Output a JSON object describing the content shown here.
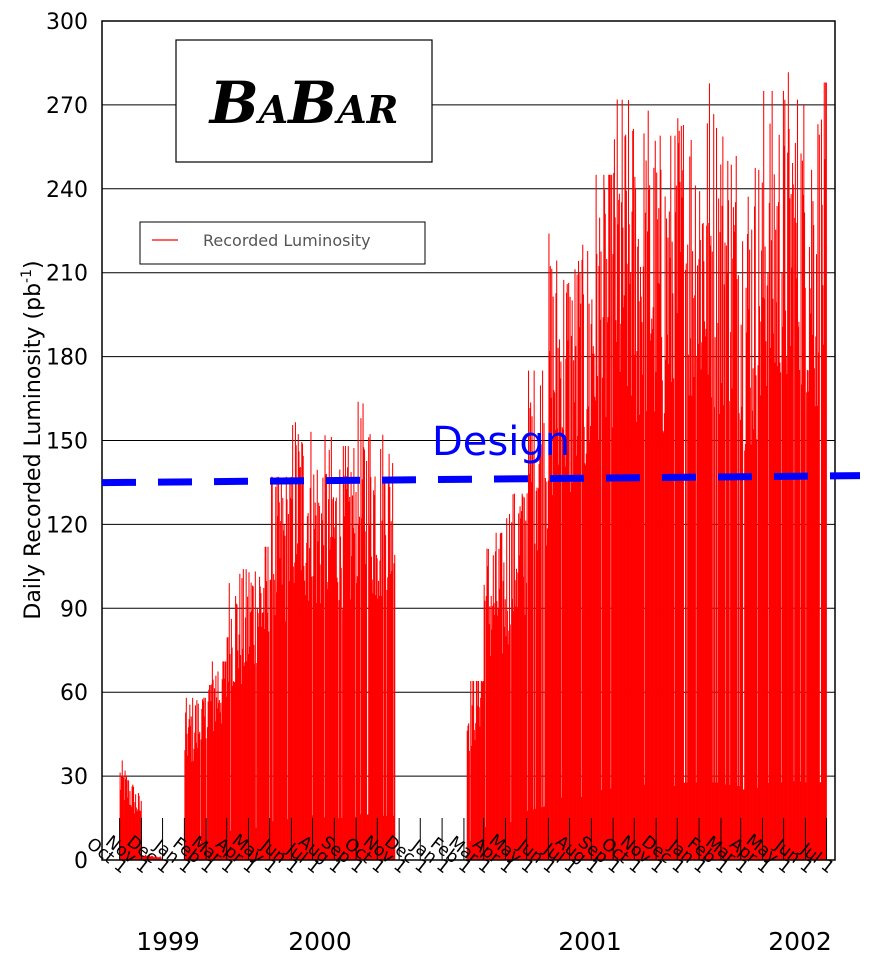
{
  "chart_data": {
    "type": "bar",
    "ylabel": "Daily Recorded Luminosity (pb",
    "ylabel_sup": "-1",
    "ylabel_end": ")",
    "ylim": [
      0,
      300
    ],
    "y_ticks": [
      0,
      30,
      60,
      90,
      120,
      150,
      180,
      210,
      240,
      270,
      300
    ],
    "grid": true,
    "x_tick_labels": [
      "Oct 1",
      "Nov 1",
      "Dec 1",
      "Jan 1",
      "Feb 1",
      "Mar 1",
      "Apr 1",
      "May 1",
      "Jun 1",
      "Jul 1",
      "Aug 1",
      "Sep 1",
      "Oct 1",
      "Nov 1",
      "Dec 1",
      "Jan 1",
      "Feb 1",
      "Mar 1",
      "Apr 1",
      "May 1",
      "Jun 1",
      "Jul 1",
      "Aug 1",
      "Sep 1",
      "Oct 1",
      "Nov 1",
      "Dec 1",
      "Jan 1",
      "Feb 1",
      "Mar 1",
      "Apr 1",
      "May 1",
      "Jun 1",
      "Jul 1"
    ],
    "years": [
      "1999",
      "2000",
      "2001",
      "2002"
    ],
    "legend": {
      "position": "top-left",
      "entry": "Recorded Luminosity",
      "color": "#ff0000"
    },
    "logo_letters": [
      "B",
      "A",
      "B",
      "A",
      "R"
    ],
    "design": {
      "label": "Design",
      "value": 136,
      "color": "#0000ff"
    },
    "series": [
      {
        "color": "#ff0000",
        "period": "1999-10-01 to 2000-10-25",
        "monthly_peaks": [
          {
            "month": "1999-10",
            "peak": 37
          },
          {
            "month": "1999-11",
            "peak": 2
          },
          {
            "month": "1999-12",
            "peak": 0
          },
          {
            "month": "2000-01",
            "peak": 58
          },
          {
            "month": "2000-02",
            "peak": 71
          },
          {
            "month": "2000-03",
            "peak": 104
          },
          {
            "month": "2000-04",
            "peak": 112
          },
          {
            "month": "2000-05",
            "peak": 137
          },
          {
            "month": "2000-06",
            "peak": 164
          },
          {
            "month": "2000-07",
            "peak": 153
          },
          {
            "month": "2000-08",
            "peak": 148
          },
          {
            "month": "2000-09",
            "peak": 164
          },
          {
            "month": "2000-10",
            "peak": 158
          }
        ]
      },
      {
        "color": "#ff0000",
        "period": "2001-02-05 to 2002-07-01",
        "monthly_peaks": [
          {
            "month": "2001-02",
            "peak": 64
          },
          {
            "month": "2001-03",
            "peak": 117
          },
          {
            "month": "2001-04",
            "peak": 131
          },
          {
            "month": "2001-05",
            "peak": 175
          },
          {
            "month": "2001-06",
            "peak": 224
          },
          {
            "month": "2001-07",
            "peak": 220
          },
          {
            "month": "2001-08",
            "peak": 245
          },
          {
            "month": "2001-09",
            "peak": 272
          },
          {
            "month": "2001-10",
            "peak": 271
          },
          {
            "month": "2001-11",
            "peak": 259
          },
          {
            "month": "2001-12",
            "peak": 276
          },
          {
            "month": "2002-01",
            "peak": 279
          },
          {
            "month": "2002-02",
            "peak": 272
          },
          {
            "month": "2002-03",
            "peak": 251
          },
          {
            "month": "2002-04",
            "peak": 275
          },
          {
            "month": "2002-05",
            "peak": 282
          },
          {
            "month": "2002-06",
            "peak": 278
          }
        ]
      }
    ]
  }
}
